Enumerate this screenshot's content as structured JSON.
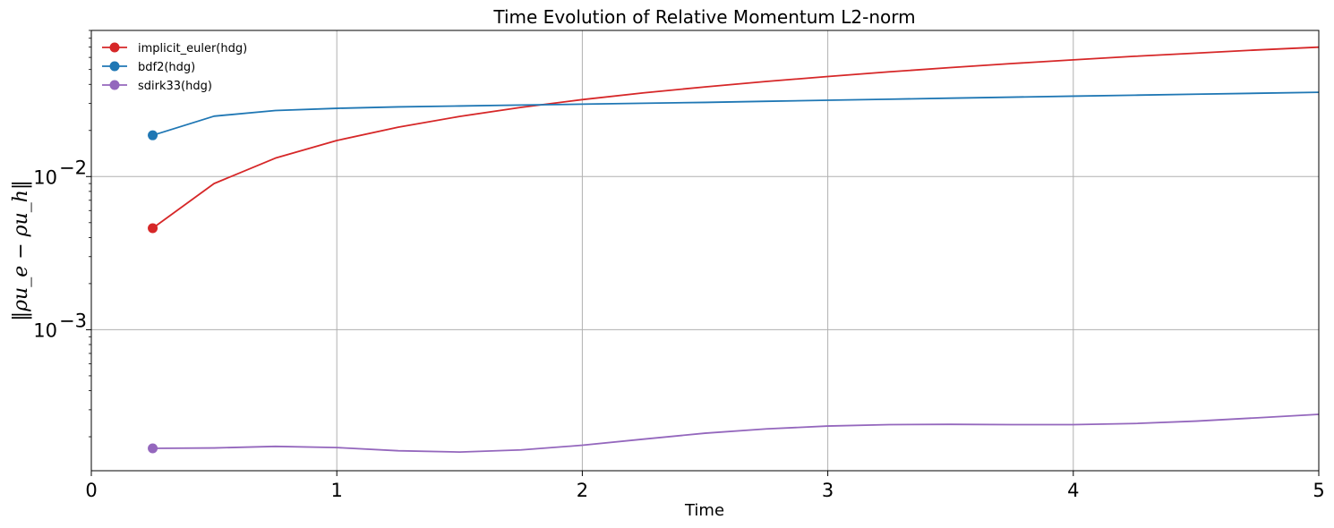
{
  "chart_data": {
    "type": "line",
    "title": "Time Evolution of Relative Momentum L2-norm",
    "xlabel": "Time",
    "ylabel": "‖ρu_e − ρu_h‖",
    "xlim": [
      0,
      5
    ],
    "ylim": [
      0.00012,
      0.09
    ],
    "yscale": "log",
    "grid": true,
    "legend_position": "upper-left",
    "x_ticks": [
      "0",
      "1",
      "2",
      "3",
      "4",
      "5"
    ],
    "y_ticks": [
      {
        "value": 0.01,
        "base": "10",
        "exp": "−2"
      },
      {
        "value": 0.001,
        "base": "10",
        "exp": "−3"
      }
    ],
    "x": [
      0.25,
      0.5,
      0.75,
      1.0,
      1.25,
      1.5,
      1.75,
      2.0,
      2.25,
      2.5,
      2.75,
      3.0,
      3.25,
      3.5,
      3.75,
      4.0,
      4.25,
      4.5,
      4.75,
      5.0
    ],
    "series": [
      {
        "name": "implicit_euler(hdg)",
        "color": "#d62728",
        "values": [
          0.0046,
          0.009,
          0.0132,
          0.0172,
          0.021,
          0.0247,
          0.0283,
          0.0318,
          0.0352,
          0.0385,
          0.0418,
          0.045,
          0.0483,
          0.0515,
          0.0547,
          0.0578,
          0.061,
          0.064,
          0.0671,
          0.07
        ]
      },
      {
        "name": "bdf2(hdg)",
        "color": "#1f77b4",
        "values": [
          0.0186,
          0.0248,
          0.027,
          0.0279,
          0.0285,
          0.0289,
          0.0293,
          0.0297,
          0.0301,
          0.0305,
          0.031,
          0.0315,
          0.032,
          0.0325,
          0.033,
          0.0335,
          0.034,
          0.0345,
          0.035,
          0.0355
        ]
      },
      {
        "name": "sdirk33(hdg)",
        "color": "#9467bd",
        "values": [
          0.000168,
          0.000169,
          0.000173,
          0.00017,
          0.000162,
          0.000159,
          0.000164,
          0.000176,
          0.000193,
          0.000211,
          0.000225,
          0.000235,
          0.00024,
          0.000241,
          0.00024,
          0.00024,
          0.000244,
          0.000253,
          0.000266,
          0.00028
        ]
      }
    ]
  }
}
